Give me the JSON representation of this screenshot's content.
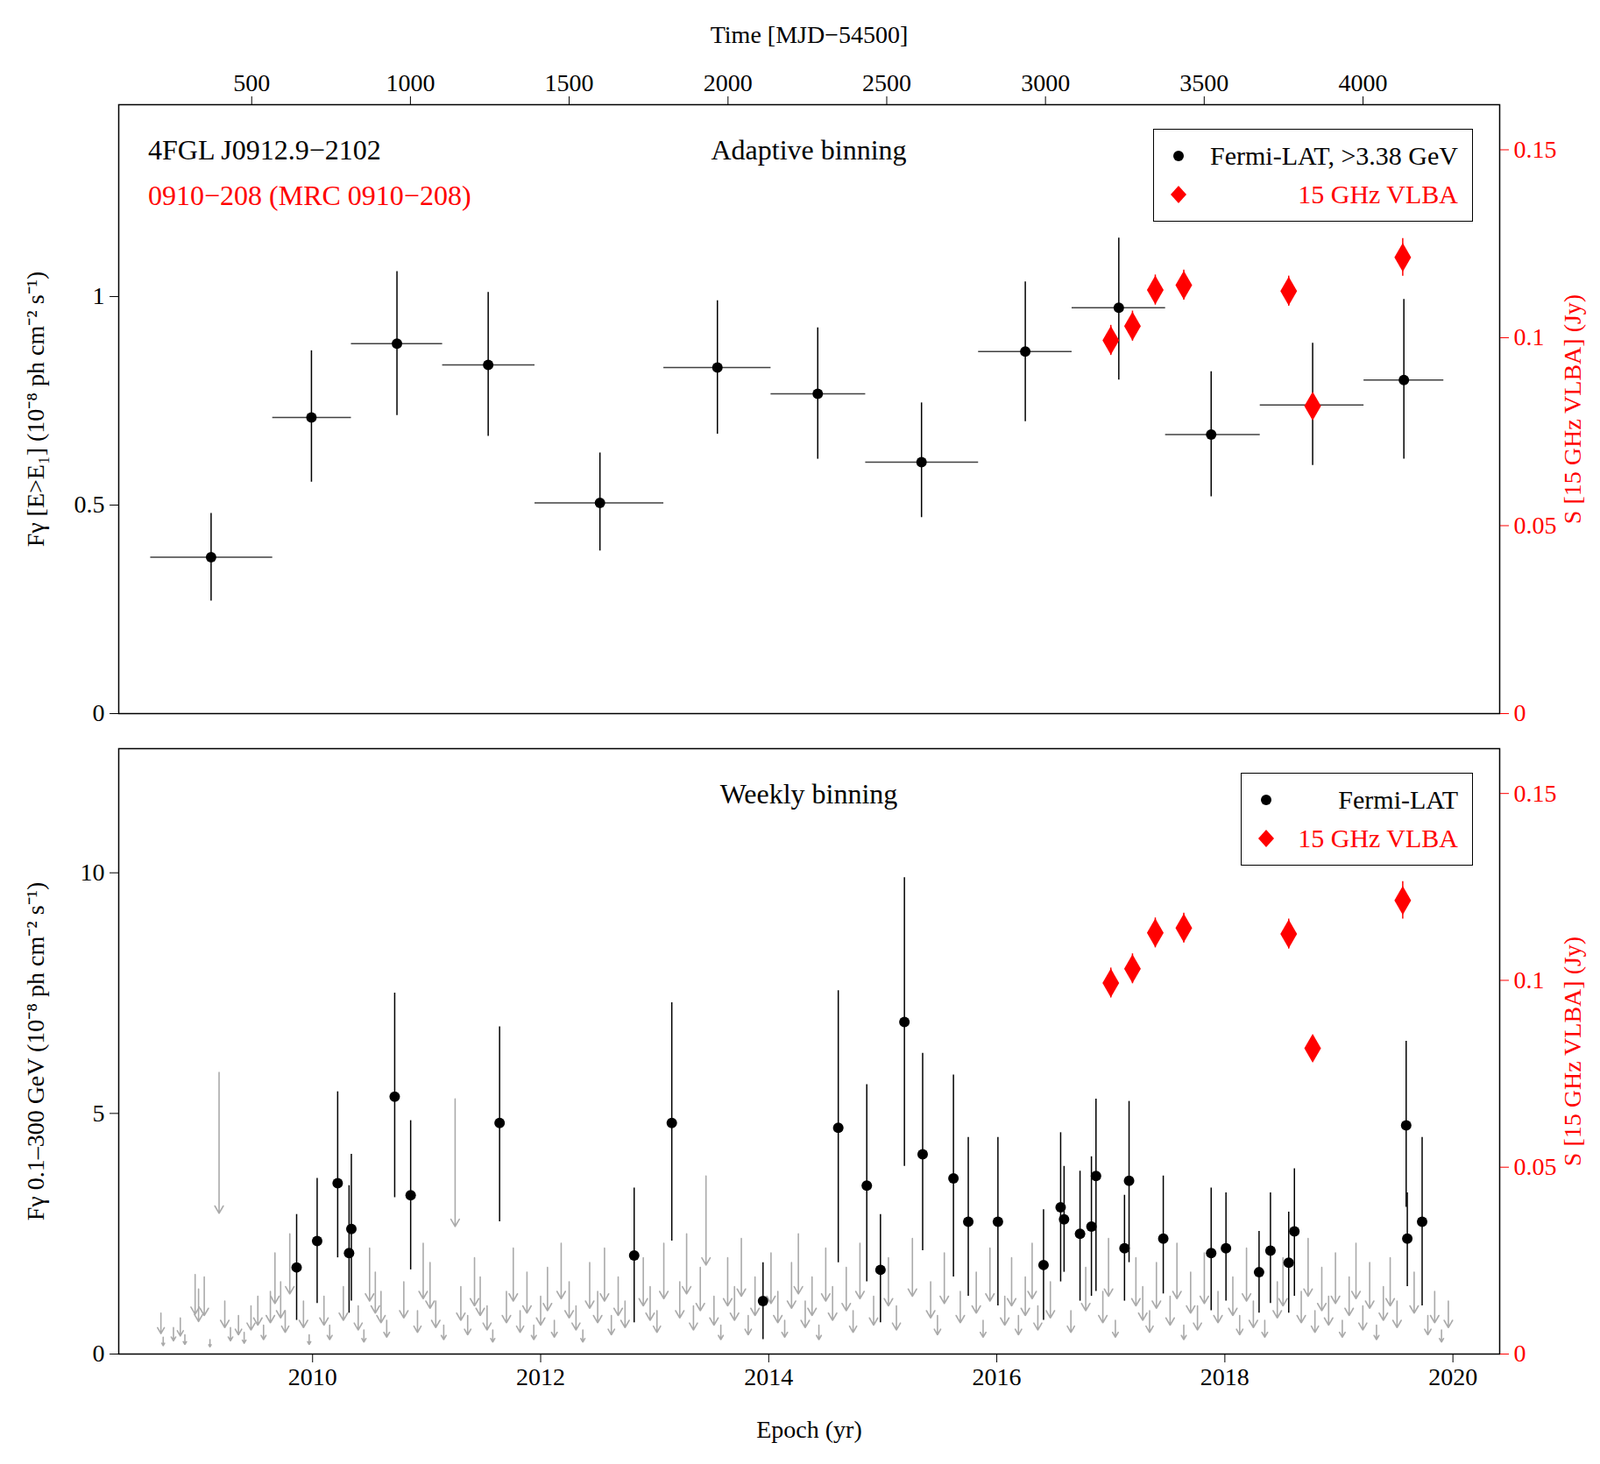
{
  "chart_data": [
    {
      "type": "scatter",
      "title": "Adaptive binning",
      "annotations": [
        {
          "text": "4FGL J0912.9−2102",
          "color": "black"
        },
        {
          "text": "0910−208 (MRC 0910−208)",
          "color": "red"
        }
      ],
      "x2label": "Time [MJD−54500]",
      "ylabel": "Fγ [E>E₁] (10⁻⁸ ph cm⁻² s⁻¹)",
      "y2label": "S [15 GHz VLBA] (Jy)",
      "xlim": [
        2008.3,
        2020.41
      ],
      "x2ticks": [
        {
          "value": 2009.466,
          "label": "500"
        },
        {
          "value": 2010.858,
          "label": "1000"
        },
        {
          "value": 2012.25,
          "label": "1500"
        },
        {
          "value": 2013.643,
          "label": "2000"
        },
        {
          "value": 2015.035,
          "label": "2500"
        },
        {
          "value": 2016.427,
          "label": "3000"
        },
        {
          "value": 2017.819,
          "label": "3500"
        },
        {
          "value": 2019.212,
          "label": "4000"
        }
      ],
      "ylim": [
        0,
        1.46
      ],
      "yticks": [
        0,
        0.5,
        1
      ],
      "y2lim": [
        0,
        0.162
      ],
      "y2ticks": [
        0,
        0.05,
        0.1,
        0.15
      ],
      "legend": "top-right",
      "series": [
        {
          "name": "Fermi-LAT, >3.38 GeV",
          "color": "black",
          "marker": "circle",
          "x": [
            2009.11,
            2009.99,
            2010.74,
            2011.54,
            2012.52,
            2013.55,
            2014.43,
            2015.34,
            2016.25,
            2017.07,
            2017.88,
            2018.77,
            2019.57
          ],
          "values": [
            0.375,
            0.71,
            0.887,
            0.836,
            0.505,
            0.83,
            0.767,
            0.603,
            0.868,
            0.973,
            0.669,
            0.74,
            0.8
          ],
          "x_low": [
            2008.58,
            2009.65,
            2010.34,
            2011.14,
            2011.95,
            2013.08,
            2014.02,
            2014.85,
            2015.84,
            2016.66,
            2017.48,
            2018.31,
            2019.22
          ],
          "x_high": [
            2009.65,
            2010.34,
            2011.14,
            2011.95,
            2013.08,
            2014.02,
            2014.85,
            2015.84,
            2016.66,
            2017.48,
            2018.31,
            2019.22,
            2019.92
          ],
          "y_low": [
            0.27,
            0.555,
            0.715,
            0.665,
            0.39,
            0.67,
            0.61,
            0.47,
            0.7,
            0.8,
            0.52,
            0.595,
            0.61
          ],
          "y_high": [
            0.48,
            0.87,
            1.06,
            1.01,
            0.625,
            0.99,
            0.925,
            0.745,
            1.035,
            1.14,
            0.82,
            0.888,
            0.993
          ]
        },
        {
          "name": "15 GHz VLBA",
          "color": "red",
          "marker": "diamond",
          "axis": "y2",
          "x": [
            2017.0,
            2017.19,
            2017.39,
            2017.64,
            2018.56,
            2018.77,
            2019.56
          ],
          "values": [
            0.0993,
            0.1031,
            0.1127,
            0.114,
            0.1124,
            0.0818,
            0.1214
          ],
          "y_err": [
            0.004,
            0.004,
            0.004,
            0.004,
            0.004,
            0.003,
            0.005
          ]
        }
      ]
    },
    {
      "type": "scatter",
      "title": "Weekly binning",
      "xlabel": "Epoch (yr)",
      "ylabel": "Fγ 0.1–300 GeV (10⁻⁸ ph cm⁻² s⁻¹)",
      "y2label": "S [15 GHz VLBA] (Jy)",
      "xlim": [
        2008.3,
        2020.41
      ],
      "xticks": [
        2010,
        2012,
        2014,
        2016,
        2018,
        2020
      ],
      "ylim": [
        0,
        12.58
      ],
      "yticks": [
        0,
        5,
        10
      ],
      "y2lim": [
        0,
        0.162
      ],
      "y2ticks": [
        0,
        0.05,
        0.1,
        0.15
      ],
      "legend": "top-right",
      "series": [
        {
          "color": "#aaaaaa",
          "marker": "arrow",
          "x": [
            2008.67,
            2008.69,
            2008.78,
            2008.84,
            2008.88,
            2008.97,
            2009.0,
            2009.05,
            2009.1,
            2009.18,
            2009.23,
            2009.28,
            2009.35,
            2009.4,
            2009.46,
            2009.52,
            2009.57,
            2009.63,
            2009.67,
            2009.72,
            2009.76,
            2009.8,
            2009.92,
            2009.97,
            2010.1,
            2010.15,
            2010.27,
            2010.4,
            2010.45,
            2010.5,
            2010.55,
            2010.6,
            2010.65,
            2010.8,
            2010.92,
            2010.97,
            2011.03,
            2011.08,
            2011.15,
            2011.25,
            2011.3,
            2011.36,
            2011.42,
            2011.47,
            2011.53,
            2011.58,
            2011.7,
            2011.76,
            2011.82,
            2011.88,
            2011.94,
            2012.0,
            2012.06,
            2012.12,
            2012.18,
            2012.25,
            2012.31,
            2012.37,
            2012.43,
            2012.5,
            2012.56,
            2012.62,
            2012.68,
            2012.74,
            2012.9,
            2012.96,
            2013.02,
            2013.08,
            2013.22,
            2013.28,
            2013.34,
            2013.4,
            2013.45,
            2013.52,
            2013.58,
            2013.64,
            2013.7,
            2013.76,
            2013.82,
            2013.88,
            2014.02,
            2014.08,
            2014.14,
            2014.2,
            2014.26,
            2014.32,
            2014.38,
            2014.44,
            2014.5,
            2014.56,
            2014.68,
            2014.74,
            2014.8,
            2014.92,
            2015.05,
            2015.12,
            2015.26,
            2015.42,
            2015.48,
            2015.54,
            2015.68,
            2015.82,
            2015.88,
            2015.94,
            2016.07,
            2016.13,
            2016.19,
            2016.25,
            2016.31,
            2016.36,
            2016.47,
            2016.65,
            2016.78,
            2016.93,
            2016.98,
            2017.04,
            2017.22,
            2017.28,
            2017.34,
            2017.4,
            2017.52,
            2017.58,
            2017.64,
            2017.7,
            2017.76,
            2017.82,
            2017.94,
            2018.07,
            2018.13,
            2018.19,
            2018.25,
            2018.35,
            2018.46,
            2018.51,
            2018.67,
            2018.73,
            2018.79,
            2018.85,
            2018.91,
            2018.97,
            2019.03,
            2019.09,
            2019.15,
            2019.21,
            2019.27,
            2019.33,
            2019.39,
            2019.45,
            2019.51,
            2019.66,
            2019.78,
            2019.84,
            2019.9,
            2019.96
          ],
          "values": [
            0.85,
            0.35,
            0.55,
            0.75,
            0.4,
            1.65,
            1.35,
            1.6,
            0.3,
            5.85,
            1.1,
            0.55,
            0.8,
            0.45,
            1.0,
            1.2,
            0.6,
            1.3,
            2.1,
            1.5,
            0.9,
            2.5,
            1.1,
            0.4,
            1.2,
            0.6,
            1.4,
            1.0,
            0.5,
            2.2,
            1.7,
            1.3,
            0.7,
            1.5,
            0.9,
            2.3,
            1.9,
            1.1,
            0.6,
            5.3,
            1.4,
            0.8,
            2.0,
            1.6,
            1.0,
            0.5,
            1.3,
            2.2,
            0.9,
            1.7,
            0.6,
            1.2,
            1.8,
            0.7,
            2.3,
            1.5,
            1.0,
            0.5,
            1.9,
            1.3,
            2.2,
            0.8,
            1.6,
            1.1,
            2.0,
            1.4,
            0.9,
            2.3,
            1.5,
            2.5,
            1.0,
            1.8,
            3.7,
            1.2,
            0.6,
            2.0,
            1.4,
            2.4,
            0.8,
            1.6,
            2.1,
            1.3,
            0.7,
            1.9,
            2.5,
            1.1,
            1.6,
            0.6,
            2.2,
            1.4,
            1.8,
            0.9,
            2.3,
            1.2,
            2.0,
            1.0,
            2.4,
            1.5,
            0.8,
            2.1,
            1.3,
            1.7,
            0.7,
            2.2,
            1.2,
            2.0,
            0.8,
            1.6,
            2.3,
            1.0,
            1.5,
            0.9,
            1.8,
            1.3,
            2.4,
            0.7,
            2.0,
            1.4,
            0.9,
            1.9,
            1.2,
            2.3,
            0.6,
            1.7,
            1.0,
            2.1,
            1.3,
            1.6,
            0.8,
            2.2,
            1.1,
            0.7,
            1.5,
            2.0,
            1.3,
            2.4,
            0.9,
            1.8,
            1.2,
            2.1,
            0.7,
            1.6,
            2.3,
            1.0,
            1.9,
            0.6,
            1.4,
            2.0,
            1.1,
            1.7,
            0.8,
            1.3,
            0.5,
            1.1
          ]
        },
        {
          "name": "Fermi-LAT",
          "color": "black",
          "marker": "circle",
          "x": [
            2009.86,
            2010.04,
            2010.22,
            2010.32,
            2010.34,
            2010.72,
            2010.86,
            2011.64,
            2012.82,
            2013.15,
            2013.95,
            2014.61,
            2014.86,
            2014.98,
            2015.19,
            2015.35,
            2015.62,
            2015.75,
            2016.01,
            2016.41,
            2016.56,
            2016.59,
            2016.73,
            2016.83,
            2016.87,
            2017.12,
            2017.16,
            2017.46,
            2017.88,
            2018.01,
            2018.3,
            2018.4,
            2018.56,
            2018.61,
            2019.59,
            2019.6,
            2019.73
          ],
          "values": [
            1.8,
            2.35,
            3.55,
            2.1,
            2.6,
            5.35,
            3.3,
            4.8,
            2.05,
            4.8,
            1.1,
            4.7,
            3.5,
            1.75,
            6.9,
            4.15,
            3.65,
            2.75,
            2.75,
            1.85,
            3.05,
            2.8,
            2.5,
            2.65,
            3.7,
            2.2,
            3.6,
            2.4,
            2.1,
            2.2,
            1.7,
            2.15,
            1.9,
            2.55,
            4.75,
            2.4,
            2.75
          ],
          "y_low": [
            0.7,
            1.05,
            2.0,
            0.85,
            1.1,
            3.25,
            1.75,
            2.75,
            0.65,
            2.35,
            0.3,
            1.9,
            1.5,
            0.65,
            3.9,
            2.15,
            1.6,
            1.2,
            1.0,
            0.7,
            1.5,
            1.7,
            1.1,
            1.2,
            1.3,
            1.1,
            1.9,
            1.25,
            0.9,
            1.1,
            0.85,
            1.05,
            0.85,
            1.2,
            3.05,
            1.4,
            1.0
          ],
          "y_high": [
            2.9,
            3.65,
            5.45,
            3.5,
            4.15,
            7.5,
            4.85,
            6.8,
            3.45,
            7.3,
            1.9,
            7.55,
            5.6,
            2.9,
            9.9,
            6.25,
            5.8,
            4.5,
            4.5,
            3.0,
            4.6,
            3.9,
            3.8,
            4.1,
            5.3,
            3.3,
            5.25,
            3.7,
            3.45,
            3.35,
            2.55,
            3.35,
            2.95,
            3.85,
            6.5,
            3.35,
            4.5
          ]
        },
        {
          "name": "15 GHz VLBA",
          "color": "red",
          "marker": "diamond",
          "axis": "y2",
          "x": [
            2017.0,
            2017.19,
            2017.39,
            2017.64,
            2018.56,
            2018.77,
            2019.56
          ],
          "values": [
            0.0993,
            0.1031,
            0.1127,
            0.114,
            0.1124,
            0.0818,
            0.1214
          ],
          "y_err": [
            0.004,
            0.004,
            0.004,
            0.004,
            0.004,
            0.003,
            0.005
          ]
        }
      ]
    }
  ]
}
